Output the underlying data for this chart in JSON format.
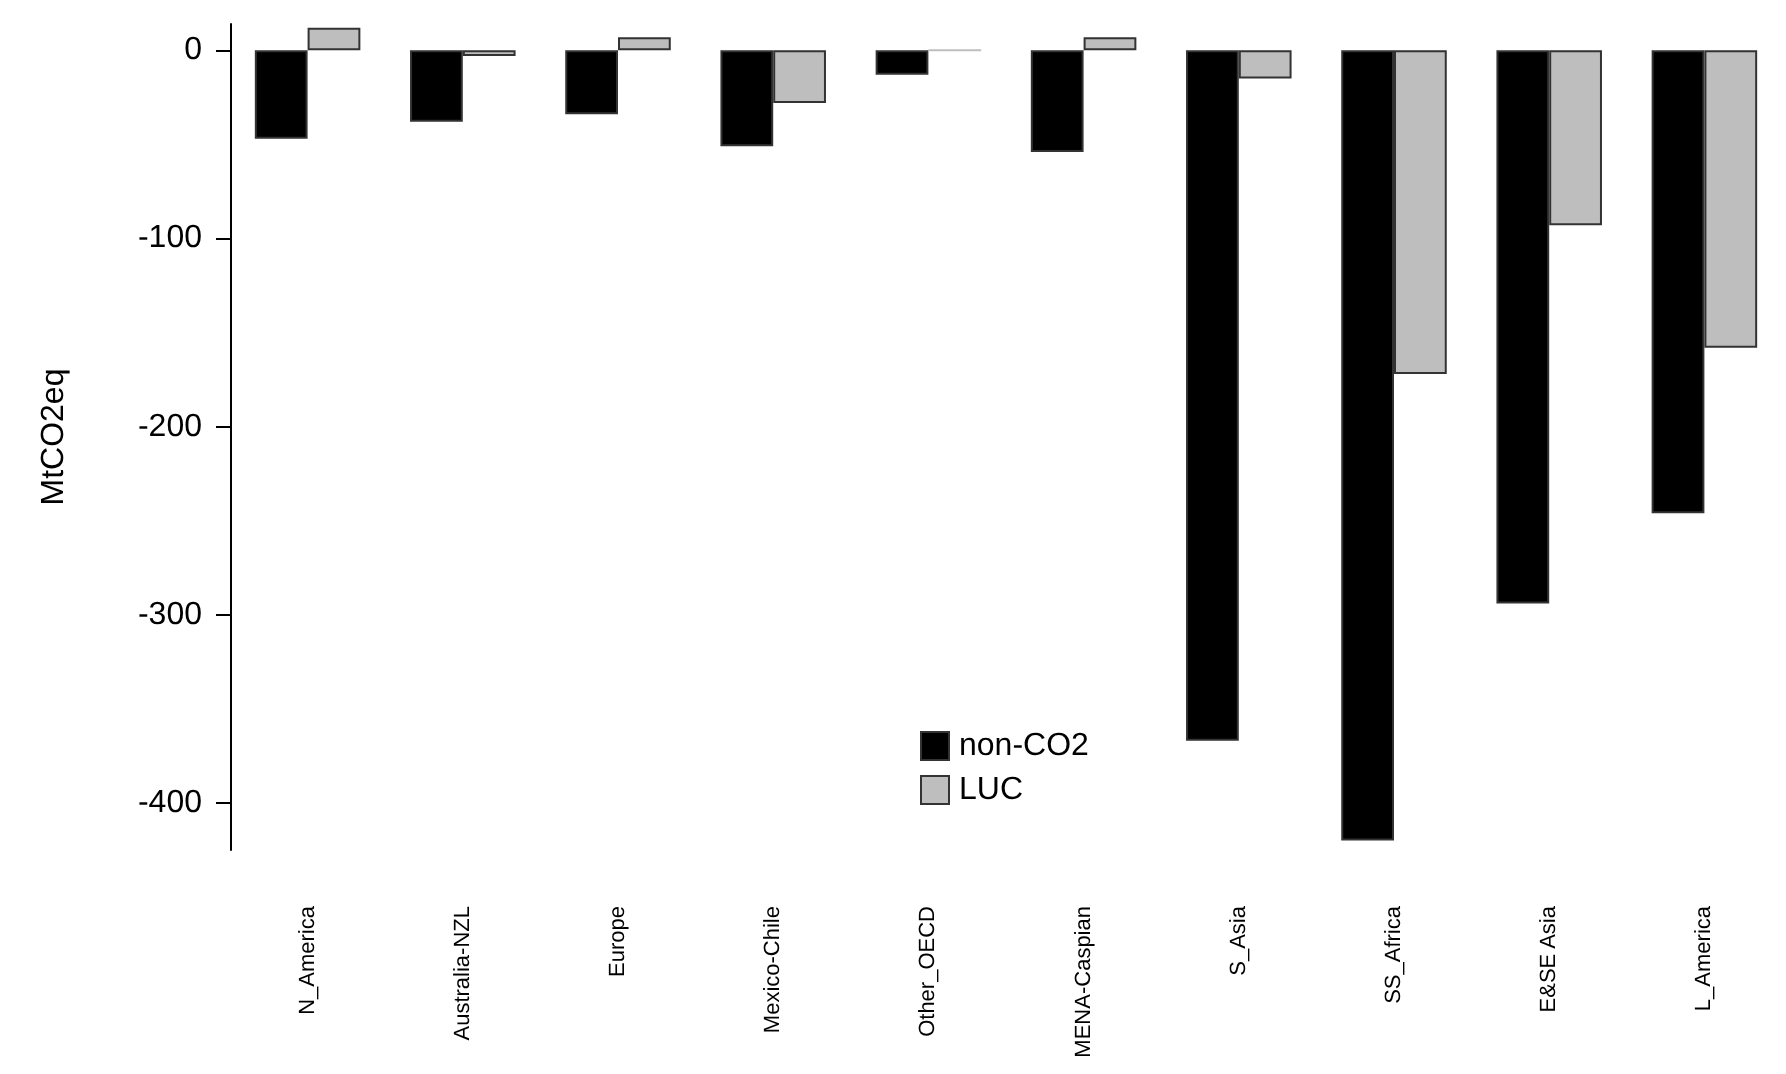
{
  "chart_data": {
    "type": "bar",
    "ylabel": "MtCO2eq",
    "categories": [
      "N_America",
      "Australia-NZL",
      "Europe",
      "Mexico-Chile",
      "Other_OECD",
      "MENA-Caspian",
      "S_Asia",
      "SS_Africa",
      "E&SE Asia",
      "L_America"
    ],
    "series": [
      {
        "name": "non-CO2",
        "color": "#000000",
        "values": [
          -47,
          -38,
          -34,
          -51,
          -13,
          -54,
          -367,
          -420,
          -294,
          -246
        ]
      },
      {
        "name": "LUC",
        "color": "#bebebe",
        "values": [
          12,
          -3,
          7,
          -28,
          0,
          7,
          -15,
          -172,
          -93,
          -158
        ]
      }
    ],
    "ylim": [
      -425,
      14
    ],
    "yticks": [
      0,
      -100,
      -200,
      -300,
      -400
    ],
    "grid": false,
    "legend": "bottom"
  }
}
